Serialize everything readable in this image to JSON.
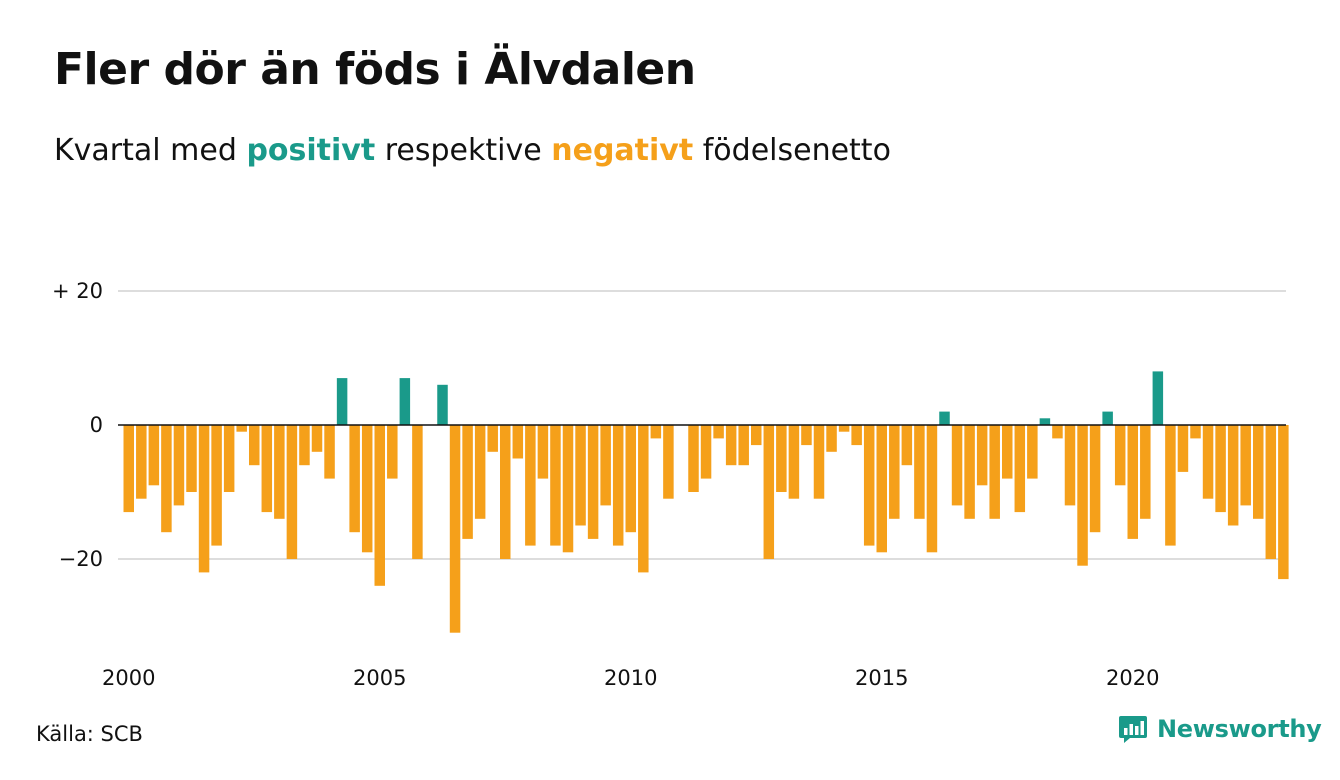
{
  "title": "Fler dör än föds i Älvdalen",
  "subtitle": {
    "lead": "Kvartal med",
    "positive_word": "positivt",
    "middle": "respektive",
    "negative_word": "negativt",
    "tail": "födelsenetto"
  },
  "source": "Källa: SCB",
  "brand": {
    "name": "Newsworthy",
    "icon": "newsworthy-chart-bubble-icon"
  },
  "colors": {
    "positive": "#1a9a8a",
    "negative": "#f5a01a",
    "grid": "#dddddd",
    "zero": "#111111"
  },
  "chart_data": {
    "type": "bar",
    "x_start": "2000 Q1",
    "x_step": "quarter",
    "ylim": [
      -32,
      20
    ],
    "yticks": [
      {
        "value": 20,
        "label": "+ 20"
      },
      {
        "value": 0,
        "label": "0"
      },
      {
        "value": -20,
        "label": "−20"
      }
    ],
    "xticks": [
      {
        "label": "2000"
      },
      {
        "label": "2005"
      },
      {
        "label": "2010"
      },
      {
        "label": "2015"
      },
      {
        "label": "2020"
      }
    ],
    "grid": true,
    "legend": "in subtitle",
    "values": [
      -13,
      -11,
      -9,
      -16,
      -12,
      -10,
      -22,
      -18,
      -10,
      -1,
      -6,
      -13,
      -14,
      -20,
      -6,
      -4,
      -8,
      7,
      -16,
      -19,
      -24,
      -8,
      7,
      -20,
      0,
      6,
      -31,
      -17,
      -14,
      -4,
      -20,
      -5,
      -18,
      -8,
      -18,
      -19,
      -15,
      -17,
      -12,
      -18,
      -16,
      -22,
      -2,
      -11,
      0,
      -10,
      -8,
      -2,
      -6,
      -6,
      -3,
      -20,
      -10,
      -11,
      -3,
      -11,
      -4,
      -1,
      -3,
      -18,
      -19,
      -14,
      -6,
      -14,
      -19,
      2,
      -12,
      -14,
      -9,
      -14,
      -8,
      -13,
      -8,
      1,
      -2,
      -12,
      -21,
      -16,
      2,
      -9,
      -17,
      -14,
      8,
      -18,
      -7,
      -2,
      -11,
      -13,
      -15,
      -12,
      -14,
      -20,
      -23
    ]
  }
}
